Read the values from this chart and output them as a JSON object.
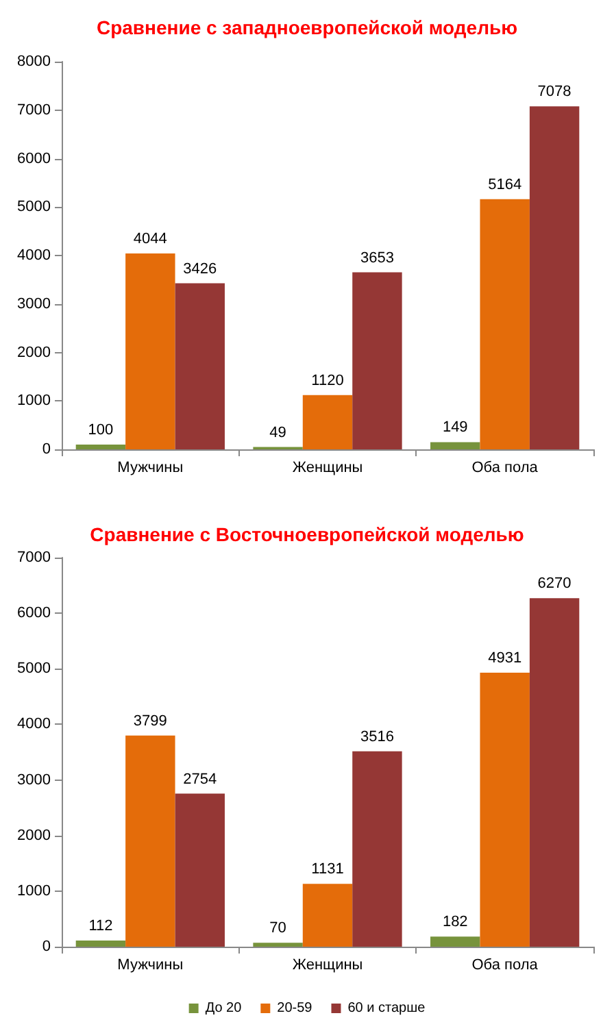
{
  "chart_data": [
    {
      "type": "bar",
      "title": "Сравнение с западноевропейской моделью",
      "categories": [
        "Мужчины",
        "Женщины",
        "Оба пола"
      ],
      "series": [
        {
          "color": "#77933c",
          "values": [
            100,
            49,
            149
          ]
        },
        {
          "color": "#e46c0a",
          "values": [
            4044,
            1120,
            5164
          ]
        },
        {
          "color": "#953735",
          "values": [
            3426,
            3653,
            7078
          ]
        }
      ],
      "ylim": [
        0,
        8000
      ],
      "yticks": [
        0,
        1000,
        2000,
        3000,
        4000,
        5000,
        6000,
        7000,
        8000
      ],
      "grid": false,
      "legend": false,
      "data_labels": true
    },
    {
      "type": "bar",
      "title": "Сравнение с Восточноевропейской моделью",
      "categories": [
        "Мужчины",
        "Женщины",
        "Оба пола"
      ],
      "series": [
        {
          "name": "До 20",
          "color": "#77933c",
          "values": [
            112,
            70,
            182
          ]
        },
        {
          "name": "20-59",
          "color": "#e46c0a",
          "values": [
            3799,
            1131,
            4931
          ]
        },
        {
          "name": "60 и старше",
          "color": "#953735",
          "values": [
            2754,
            3516,
            6270
          ]
        }
      ],
      "ylim": [
        0,
        7000
      ],
      "yticks": [
        0,
        1000,
        2000,
        3000,
        4000,
        5000,
        6000,
        7000
      ],
      "grid": false,
      "legend": "bottom",
      "data_labels": true
    }
  ]
}
